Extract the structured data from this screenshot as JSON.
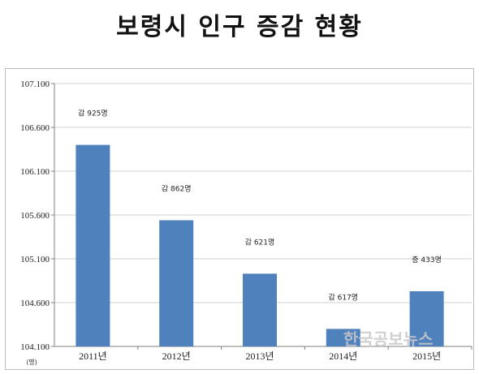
{
  "title": "보령시 인구 증감 현황",
  "unit_label": "(명)",
  "watermark": "한국공보뉴스",
  "colors": {
    "bar": "#4f81bd",
    "grid": "#d0d0d0",
    "axis": "#7f7f7f"
  },
  "chart_data": {
    "type": "bar",
    "categories": [
      "2011년",
      "2012년",
      "2013년",
      "2014년",
      "2015년"
    ],
    "values": [
      106400,
      105540,
      104930,
      104300,
      104730
    ],
    "data_labels": [
      "감 925명",
      "감 862명",
      "감 621명",
      "감 617명",
      "증 433명"
    ],
    "yticks": [
      "107.100",
      "106.600",
      "106.100",
      "105.600",
      "105.100",
      "104.600",
      "104.100"
    ],
    "ylim": [
      104100,
      107100
    ],
    "grid": true,
    "legend": "none"
  }
}
